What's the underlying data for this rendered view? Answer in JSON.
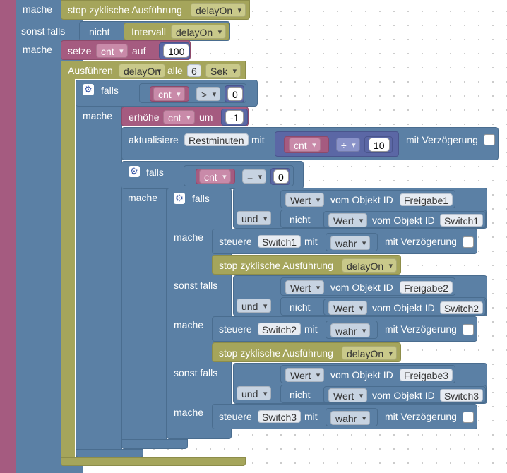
{
  "labels": {
    "mache": "mache",
    "sonst_falls": "sonst falls",
    "nicht": "nicht",
    "falls": "falls",
    "und": "und",
    "setze": "setze",
    "auf": "auf",
    "ausfuehren": "Ausführen",
    "alle": "alle",
    "erhoehe": "erhöhe",
    "um": "um",
    "aktualisiere": "aktualisiere",
    "mit": "mit",
    "mit_verzoegerung": "mit Verzögerung",
    "steuere": "steuere",
    "vom_objekt_id": "vom Objekt ID",
    "stop_zyklisch": "stop zyklische Ausführung",
    "intervall": "Intervall"
  },
  "values": {
    "delayOn": "delayOn",
    "cnt": "cnt",
    "setze_value": "100",
    "interval_value": "6",
    "interval_unit": "Sek",
    "gt": ">",
    "zero": "0",
    "minus_one": "-1",
    "restminuten": "Restminuten",
    "divide": "÷",
    "ten": "10",
    "eq": "=",
    "wert": "Wert",
    "und_dd": "und",
    "wahr": "wahr",
    "freigabe1": "Freigabe1",
    "freigabe2": "Freigabe2",
    "freigabe3": "Freigabe3",
    "switch1": "Switch1",
    "switch2": "Switch2",
    "switch3": "Switch3"
  },
  "colors": {
    "control": "#5b80a5",
    "variable": "#a55b80",
    "math": "#5b67a5",
    "timer": "#a5a55b",
    "workspace_bg": "#ffffff"
  }
}
